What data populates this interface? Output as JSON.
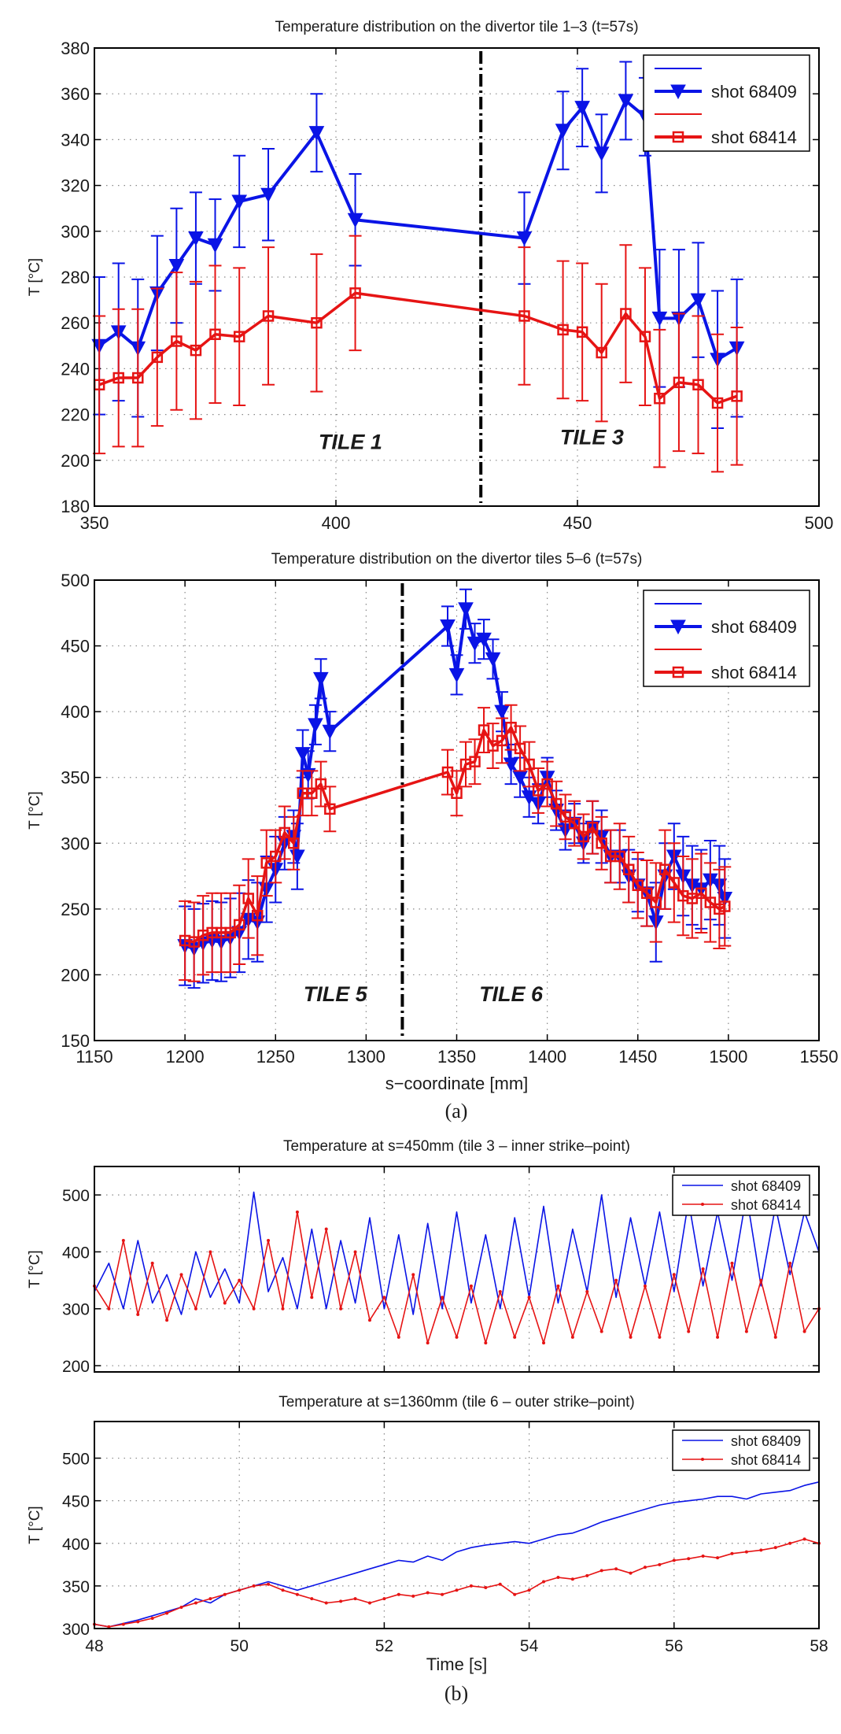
{
  "captions": {
    "a": "(a)",
    "b": "(b)"
  },
  "colors": {
    "blue": "#0a14e6",
    "red": "#e61414",
    "axis": "#000000",
    "grid": "#888888"
  },
  "chart_data": [
    {
      "type": "line",
      "title": "Temperature distribution on the divertor tile 1–3 (t=57s)",
      "xlabel": "",
      "ylabel": "T [°C]",
      "xlim": [
        350,
        500
      ],
      "ylim": [
        180,
        380
      ],
      "xticks": [
        350,
        400,
        450,
        500
      ],
      "yticks": [
        180,
        200,
        220,
        240,
        260,
        280,
        300,
        320,
        340,
        360,
        380
      ],
      "grid": true,
      "legend": "top-right",
      "divider_x": 430,
      "annotations": [
        {
          "text": "TILE 1",
          "x": 403,
          "y": 205
        },
        {
          "text": "TILE 3",
          "x": 453,
          "y": 207
        }
      ],
      "series": [
        {
          "name": "shot 68409",
          "color": "blue",
          "marker": "triangle-down",
          "x": [
            351,
            355,
            359,
            363,
            367,
            371,
            375,
            380,
            386,
            396,
            404,
            439,
            447,
            451,
            455,
            460,
            464,
            467,
            471,
            475,
            479,
            483
          ],
          "y": [
            250,
            256,
            249,
            273,
            285,
            297,
            294,
            313,
            316,
            343,
            305,
            297,
            344,
            354,
            334,
            357,
            350,
            262,
            262,
            270,
            244,
            249
          ],
          "err": [
            30,
            30,
            30,
            25,
            25,
            20,
            20,
            20,
            20,
            17,
            20,
            20,
            17,
            17,
            17,
            17,
            17,
            30,
            30,
            25,
            30,
            30
          ]
        },
        {
          "name": "shot 68414",
          "color": "red",
          "marker": "square",
          "x": [
            351,
            355,
            359,
            363,
            367,
            371,
            375,
            380,
            386,
            396,
            404,
            439,
            447,
            451,
            455,
            460,
            464,
            467,
            471,
            475,
            479,
            483
          ],
          "y": [
            233,
            236,
            236,
            245,
            252,
            248,
            255,
            254,
            263,
            260,
            273,
            263,
            257,
            256,
            247,
            264,
            254,
            227,
            234,
            233,
            225,
            228
          ],
          "err": [
            30,
            30,
            30,
            30,
            30,
            30,
            30,
            30,
            30,
            30,
            25,
            30,
            30,
            30,
            30,
            30,
            30,
            30,
            30,
            30,
            30,
            30
          ]
        }
      ]
    },
    {
      "type": "line",
      "title": "Temperature distribution on the divertor tiles 5–6 (t=57s)",
      "xlabel": "s−coordinate [mm]",
      "ylabel": "T [°C]",
      "xlim": [
        1150,
        1550
      ],
      "ylim": [
        150,
        500
      ],
      "xticks": [
        1150,
        1200,
        1250,
        1300,
        1350,
        1400,
        1450,
        1500,
        1550
      ],
      "yticks": [
        150,
        200,
        250,
        300,
        350,
        400,
        450,
        500
      ],
      "grid": true,
      "legend": "top-right",
      "divider_x": 1320,
      "annotations": [
        {
          "text": "TILE 5",
          "x": 1283,
          "y": 180
        },
        {
          "text": "TILE 6",
          "x": 1380,
          "y": 180
        }
      ],
      "series": [
        {
          "name": "shot 68409",
          "color": "blue",
          "marker": "triangle-down",
          "x": [
            1200,
            1205,
            1210,
            1215,
            1220,
            1225,
            1230,
            1235,
            1240,
            1245,
            1250,
            1255,
            1260,
            1262,
            1265,
            1268,
            1272,
            1275,
            1280,
            1345,
            1350,
            1355,
            1360,
            1365,
            1370,
            1375,
            1380,
            1385,
            1390,
            1395,
            1400,
            1405,
            1410,
            1415,
            1420,
            1425,
            1430,
            1435,
            1440,
            1445,
            1450,
            1455,
            1460,
            1465,
            1470,
            1475,
            1480,
            1485,
            1490,
            1495,
            1498
          ],
          "y": [
            222,
            220,
            224,
            226,
            225,
            228,
            232,
            242,
            240,
            265,
            280,
            300,
            305,
            290,
            368,
            352,
            390,
            425,
            385,
            465,
            428,
            478,
            452,
            455,
            440,
            400,
            360,
            350,
            335,
            330,
            350,
            325,
            310,
            315,
            300,
            312,
            305,
            290,
            290,
            275,
            268,
            262,
            240,
            275,
            290,
            275,
            268,
            265,
            272,
            268,
            258
          ],
          "err": [
            30,
            30,
            30,
            30,
            30,
            30,
            30,
            30,
            30,
            25,
            25,
            20,
            20,
            25,
            18,
            18,
            15,
            15,
            15,
            15,
            15,
            15,
            15,
            15,
            15,
            15,
            15,
            15,
            15,
            15,
            15,
            15,
            15,
            15,
            15,
            20,
            20,
            20,
            20,
            20,
            20,
            25,
            30,
            25,
            25,
            30,
            30,
            30,
            30,
            30,
            30
          ]
        },
        {
          "name": "shot 68414",
          "color": "red",
          "marker": "square",
          "x": [
            1200,
            1205,
            1210,
            1215,
            1220,
            1225,
            1230,
            1235,
            1240,
            1245,
            1250,
            1255,
            1260,
            1265,
            1270,
            1275,
            1280,
            1345,
            1350,
            1355,
            1360,
            1365,
            1370,
            1375,
            1380,
            1385,
            1390,
            1395,
            1400,
            1405,
            1410,
            1415,
            1420,
            1425,
            1430,
            1435,
            1440,
            1445,
            1450,
            1455,
            1460,
            1465,
            1470,
            1475,
            1480,
            1485,
            1490,
            1495,
            1498
          ],
          "y": [
            226,
            225,
            230,
            232,
            232,
            232,
            238,
            258,
            245,
            285,
            290,
            308,
            300,
            338,
            338,
            345,
            326,
            354,
            338,
            360,
            362,
            386,
            374,
            378,
            388,
            372,
            360,
            340,
            345,
            330,
            320,
            315,
            305,
            312,
            300,
            290,
            290,
            280,
            268,
            262,
            255,
            280,
            270,
            260,
            258,
            262,
            255,
            250,
            252
          ],
          "err": [
            30,
            30,
            30,
            30,
            30,
            30,
            30,
            30,
            30,
            25,
            20,
            20,
            20,
            17,
            17,
            17,
            17,
            17,
            17,
            17,
            17,
            17,
            17,
            17,
            17,
            17,
            17,
            17,
            17,
            17,
            17,
            17,
            17,
            20,
            20,
            20,
            25,
            25,
            25,
            25,
            30,
            30,
            30,
            30,
            30,
            30,
            30,
            30,
            30
          ]
        }
      ]
    },
    {
      "type": "line",
      "title": "Temperature at s=450mm (tile 3 – inner strike–point)",
      "xlabel": "",
      "ylabel": "T [°C]",
      "xlim": [
        48,
        58
      ],
      "ylim": [
        189,
        550
      ],
      "xticks": [
        48,
        50,
        52,
        54,
        56,
        58
      ],
      "show_xtick_labels": false,
      "yticks": [
        200,
        300,
        400,
        500
      ],
      "grid": true,
      "legend": "top-right",
      "x_start": 48,
      "x_step": 0.2,
      "series": [
        {
          "name": "shot 68409",
          "color": "blue",
          "marker": "none",
          "y": [
            330,
            380,
            300,
            420,
            310,
            360,
            290,
            400,
            320,
            370,
            310,
            505,
            330,
            390,
            300,
            440,
            300,
            420,
            310,
            460,
            300,
            430,
            290,
            450,
            300,
            470,
            310,
            430,
            300,
            460,
            320,
            480,
            310,
            440,
            330,
            500,
            320,
            460,
            340,
            470,
            330,
            490,
            340,
            470,
            350,
            500,
            340,
            480,
            360,
            470,
            400
          ]
        },
        {
          "name": "shot 68414",
          "color": "red",
          "marker": "dot",
          "y": [
            340,
            300,
            420,
            290,
            380,
            280,
            360,
            300,
            400,
            310,
            350,
            300,
            420,
            300,
            470,
            320,
            440,
            300,
            400,
            280,
            320,
            250,
            360,
            240,
            320,
            250,
            340,
            240,
            330,
            250,
            320,
            240,
            340,
            250,
            330,
            260,
            350,
            250,
            340,
            250,
            360,
            260,
            370,
            250,
            380,
            260,
            350,
            250,
            380,
            260,
            300
          ]
        }
      ]
    },
    {
      "type": "line",
      "title": "Temperature at s=1360mm (tile 6 – outer strike–point)",
      "xlabel": "Time [s]",
      "ylabel": "T [°C]",
      "xlim": [
        48,
        58
      ],
      "ylim": [
        300,
        543
      ],
      "xticks": [
        48,
        50,
        52,
        54,
        56,
        58
      ],
      "yticks": [
        300,
        350,
        400,
        450,
        500
      ],
      "grid": true,
      "legend": "top-right",
      "x_start": 48,
      "x_step": 0.2,
      "series": [
        {
          "name": "shot 68409",
          "color": "blue",
          "marker": "none",
          "y": [
            305,
            302,
            306,
            310,
            315,
            320,
            325,
            335,
            330,
            340,
            345,
            350,
            355,
            350,
            345,
            350,
            355,
            360,
            365,
            370,
            375,
            380,
            378,
            385,
            380,
            390,
            395,
            398,
            400,
            402,
            400,
            405,
            410,
            412,
            418,
            425,
            430,
            435,
            440,
            445,
            448,
            450,
            452,
            455,
            455,
            452,
            458,
            460,
            462,
            468,
            472
          ]
        },
        {
          "name": "shot 68414",
          "color": "red",
          "marker": "dot",
          "y": [
            305,
            302,
            305,
            308,
            312,
            318,
            325,
            330,
            335,
            340,
            345,
            350,
            352,
            345,
            340,
            335,
            330,
            332,
            335,
            330,
            335,
            340,
            338,
            342,
            340,
            345,
            350,
            348,
            352,
            340,
            345,
            355,
            360,
            358,
            362,
            368,
            370,
            365,
            372,
            375,
            380,
            382,
            385,
            383,
            388,
            390,
            392,
            395,
            400,
            405,
            400
          ]
        }
      ]
    }
  ]
}
